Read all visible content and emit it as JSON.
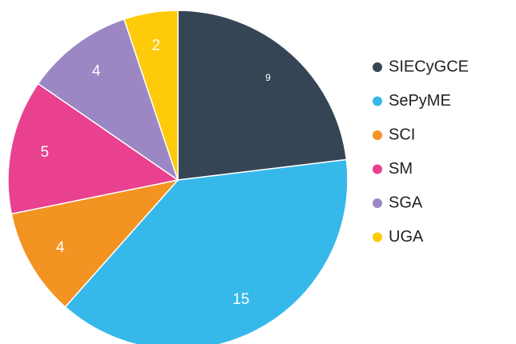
{
  "chart_data": {
    "type": "pie",
    "categories": [
      "SIECyGCE",
      "SePyME",
      "SCI",
      "SM",
      "SGA",
      "UGA"
    ],
    "values": [
      9,
      15,
      4,
      5,
      4,
      2
    ],
    "colors": [
      "#364555",
      "#36b9ea",
      "#f39322",
      "#e9408f",
      "#9b87c4",
      "#fdcb0a"
    ],
    "legend": "right"
  }
}
